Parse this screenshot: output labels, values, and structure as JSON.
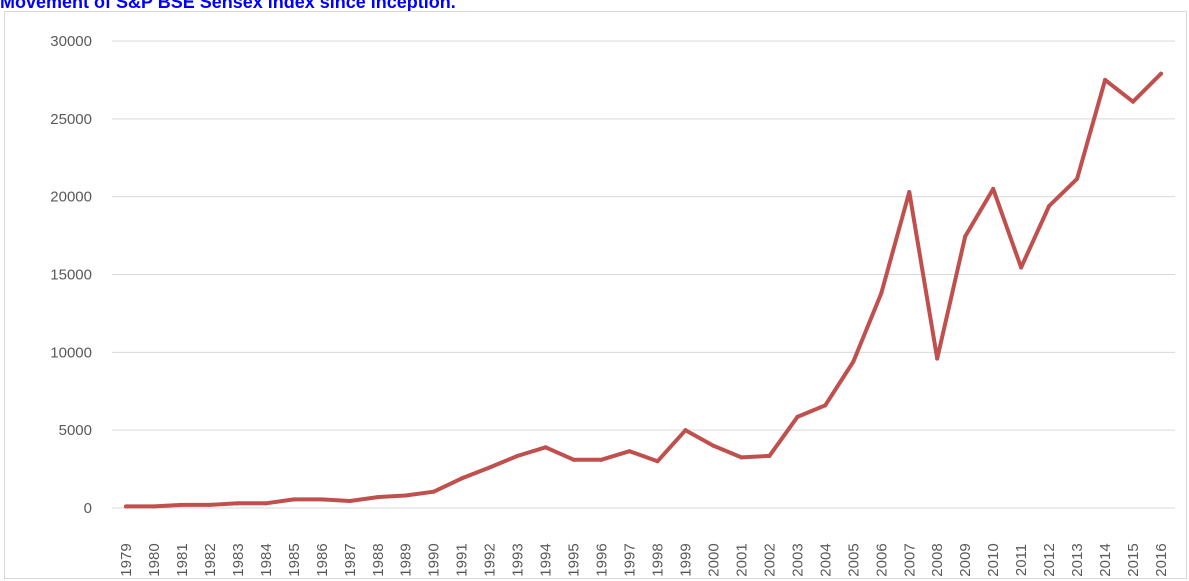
{
  "page": {
    "title": "Movement of S&P BSE Sensex index since inception."
  },
  "chart_data": {
    "type": "line",
    "title": "Movement of S&P BSE Sensex index since inception.",
    "xlabel": "",
    "ylabel": "",
    "ylim": [
      0,
      30000
    ],
    "yticks": [
      0,
      5000,
      10000,
      15000,
      20000,
      25000,
      30000
    ],
    "grid": true,
    "legend": "none",
    "colors": {
      "line": "#c0504d",
      "grid": "#d9d9d9",
      "tick_text": "#595959",
      "title": "#0000ff"
    },
    "categories": [
      "1979",
      "1980",
      "1981",
      "1982",
      "1983",
      "1984",
      "1985",
      "1986",
      "1987",
      "1988",
      "1989",
      "1990",
      "1991",
      "1992",
      "1993",
      "1994",
      "1995",
      "1996",
      "1997",
      "1998",
      "1999",
      "2000",
      "2001",
      "2002",
      "2003",
      "2004",
      "2005",
      "2006",
      "2007",
      "2008",
      "2009",
      "2010",
      "2011",
      "2012",
      "2013",
      "2014",
      "2015",
      "2016"
    ],
    "series": [
      {
        "values": [
          100,
          100,
          200,
          200,
          300,
          300,
          550,
          550,
          450,
          700,
          800,
          1050,
          1900,
          2600,
          3350,
          3900,
          3100,
          3100,
          3650,
          3000,
          5000,
          4000,
          3250,
          3350,
          5850,
          6600,
          9400,
          13800,
          20300,
          9600,
          17450,
          20500,
          15450,
          19400,
          21150,
          27500,
          26100,
          27900
        ]
      }
    ]
  }
}
